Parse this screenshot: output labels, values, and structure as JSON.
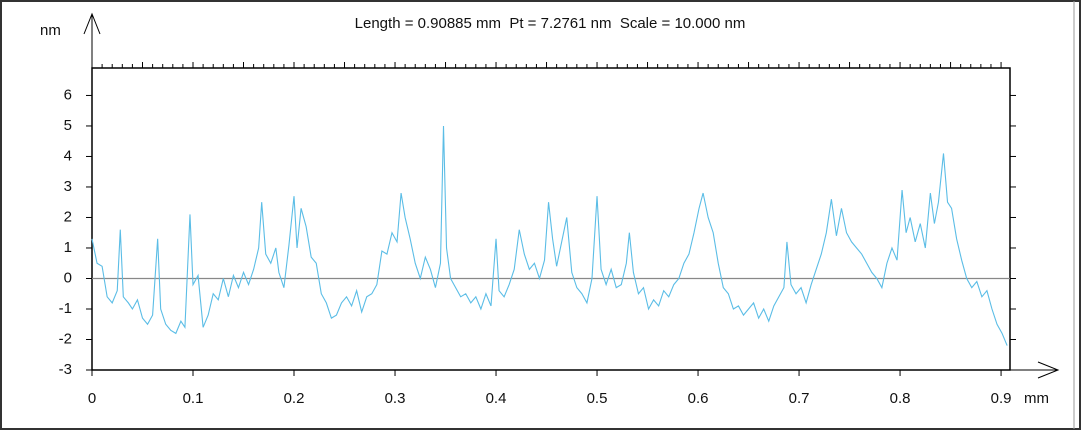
{
  "chart_data": {
    "type": "line",
    "title": "Length = 0.90885 mm  Pt = 7.2761 nm  Scale = 10.000 nm",
    "x_label": "mm",
    "y_label": "nm",
    "x": [
      0,
      0.005,
      0.01,
      0.015,
      0.02,
      0.025,
      0.028,
      0.031,
      0.036,
      0.04,
      0.045,
      0.05,
      0.055,
      0.06,
      0.065,
      0.068,
      0.073,
      0.078,
      0.083,
      0.088,
      0.092,
      0.097,
      0.1,
      0.105,
      0.11,
      0.115,
      0.12,
      0.125,
      0.13,
      0.135,
      0.14,
      0.145,
      0.15,
      0.155,
      0.16,
      0.165,
      0.168,
      0.172,
      0.177,
      0.182,
      0.185,
      0.19,
      0.195,
      0.2,
      0.203,
      0.207,
      0.212,
      0.217,
      0.222,
      0.227,
      0.232,
      0.237,
      0.242,
      0.247,
      0.252,
      0.257,
      0.262,
      0.267,
      0.272,
      0.277,
      0.282,
      0.287,
      0.292,
      0.297,
      0.302,
      0.306,
      0.31,
      0.315,
      0.32,
      0.325,
      0.33,
      0.335,
      0.34,
      0.345,
      0.348,
      0.351,
      0.355,
      0.36,
      0.365,
      0.37,
      0.375,
      0.38,
      0.385,
      0.39,
      0.395,
      0.4,
      0.403,
      0.408,
      0.413,
      0.418,
      0.423,
      0.428,
      0.433,
      0.438,
      0.443,
      0.448,
      0.452,
      0.456,
      0.46,
      0.465,
      0.47,
      0.475,
      0.48,
      0.485,
      0.49,
      0.495,
      0.5,
      0.504,
      0.509,
      0.514,
      0.519,
      0.524,
      0.529,
      0.532,
      0.536,
      0.541,
      0.546,
      0.551,
      0.556,
      0.561,
      0.566,
      0.571,
      0.576,
      0.581,
      0.586,
      0.591,
      0.596,
      0.601,
      0.605,
      0.61,
      0.615,
      0.62,
      0.625,
      0.63,
      0.635,
      0.64,
      0.645,
      0.65,
      0.655,
      0.66,
      0.665,
      0.67,
      0.675,
      0.68,
      0.685,
      0.688,
      0.692,
      0.697,
      0.702,
      0.707,
      0.712,
      0.717,
      0.722,
      0.727,
      0.732,
      0.737,
      0.742,
      0.747,
      0.752,
      0.757,
      0.762,
      0.767,
      0.772,
      0.777,
      0.782,
      0.787,
      0.792,
      0.797,
      0.802,
      0.806,
      0.81,
      0.815,
      0.82,
      0.825,
      0.83,
      0.834,
      0.838,
      0.843,
      0.847,
      0.851,
      0.856,
      0.861,
      0.866,
      0.871,
      0.876,
      0.881,
      0.886,
      0.891,
      0.896,
      0.901,
      0.906
    ],
    "series": [
      {
        "color": "#5bbde6",
        "values": [
          1.3,
          0.5,
          0.4,
          -0.6,
          -0.8,
          -0.4,
          1.6,
          -0.6,
          -0.8,
          -1.0,
          -0.7,
          -1.3,
          -1.5,
          -1.2,
          1.3,
          -1.0,
          -1.5,
          -1.7,
          -1.8,
          -1.4,
          -1.6,
          2.1,
          -0.2,
          0.1,
          -1.6,
          -1.2,
          -0.5,
          -0.7,
          0.0,
          -0.6,
          0.1,
          -0.3,
          0.2,
          -0.2,
          0.3,
          1.0,
          2.5,
          0.8,
          0.5,
          1.0,
          0.2,
          -0.3,
          1.1,
          2.7,
          1.0,
          2.3,
          1.7,
          0.7,
          0.5,
          -0.5,
          -0.8,
          -1.3,
          -1.2,
          -0.8,
          -0.6,
          -0.9,
          -0.4,
          -1.1,
          -0.6,
          -0.5,
          -0.2,
          0.9,
          0.8,
          1.5,
          1.2,
          2.8,
          2.0,
          1.3,
          0.5,
          0.0,
          0.7,
          0.3,
          -0.3,
          0.5,
          5.0,
          1.0,
          0.0,
          -0.3,
          -0.6,
          -0.5,
          -0.8,
          -0.6,
          -1.0,
          -0.5,
          -0.9,
          1.3,
          -0.4,
          -0.6,
          -0.2,
          0.3,
          1.6,
          0.8,
          0.3,
          0.5,
          0.0,
          0.6,
          2.5,
          1.3,
          0.4,
          1.2,
          2.0,
          0.2,
          -0.3,
          -0.5,
          -0.8,
          0.0,
          2.7,
          0.3,
          -0.2,
          0.3,
          -0.3,
          -0.2,
          0.5,
          1.5,
          0.2,
          -0.5,
          -0.3,
          -1.0,
          -0.7,
          -0.9,
          -0.4,
          -0.6,
          -0.2,
          0.0,
          0.5,
          0.8,
          1.5,
          2.3,
          2.8,
          2.0,
          1.5,
          0.5,
          -0.3,
          -0.5,
          -1.0,
          -0.9,
          -1.2,
          -1.0,
          -0.8,
          -1.3,
          -1.0,
          -1.4,
          -0.9,
          -0.6,
          -0.3,
          1.2,
          -0.2,
          -0.5,
          -0.3,
          -0.8,
          -0.2,
          0.3,
          0.8,
          1.5,
          2.6,
          1.4,
          2.3,
          1.5,
          1.2,
          1.0,
          0.8,
          0.5,
          0.2,
          0.0,
          -0.3,
          0.5,
          1.0,
          0.6,
          2.9,
          1.5,
          2.0,
          1.2,
          1.8,
          1.0,
          2.8,
          1.8,
          2.5,
          4.1,
          2.5,
          2.3,
          1.3,
          0.6,
          0.0,
          -0.3,
          -0.1,
          -0.6,
          -0.4,
          -1.0,
          -1.5,
          -1.8,
          -2.2
        ]
      }
    ],
    "xlim": [
      0,
      0.90885
    ],
    "xticks": [
      0,
      0.1,
      0.2,
      0.3,
      0.4,
      0.5,
      0.6,
      0.7,
      0.8,
      0.9
    ],
    "ylim": [
      -3,
      6.9
    ],
    "yticks": [
      -3,
      -2,
      -1,
      0,
      1,
      2,
      3,
      4,
      5,
      6
    ],
    "zero_line": true
  }
}
